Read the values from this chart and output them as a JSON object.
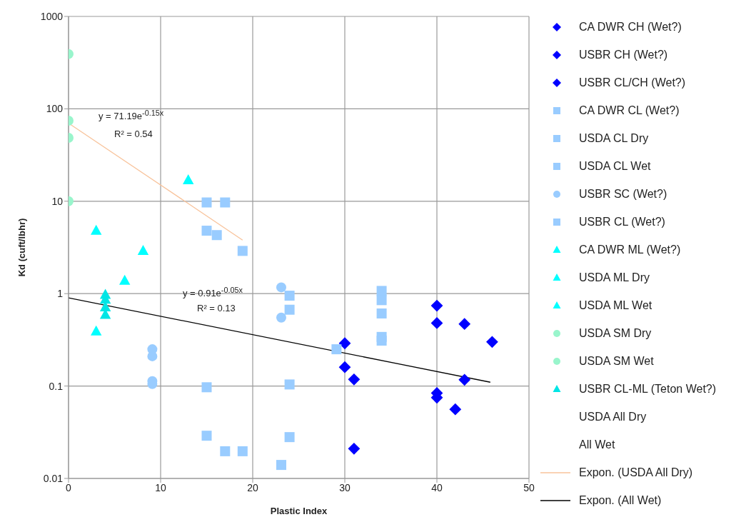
{
  "chart_data": {
    "type": "scatter",
    "xlabel": "Plastic Index",
    "ylabel": "Kd (cuft/lbhr)",
    "xlim": [
      0,
      50
    ],
    "xticks": [
      0,
      10,
      20,
      30,
      40,
      50
    ],
    "ylim": [
      0.01,
      1000
    ],
    "yticks": [
      0.01,
      0.1,
      1,
      10,
      100,
      1000
    ],
    "log": "y",
    "grid": true,
    "legend": "right",
    "series": [
      {
        "name": "CA DWR CH (Wet?)",
        "color": "#0000ff",
        "marker": "diamond",
        "x": [
          31,
          31,
          43,
          43,
          46,
          42
        ],
        "values": [
          0.118,
          0.021,
          0.47,
          0.117,
          0.3,
          0.056
        ]
      },
      {
        "name": "USBR CH (Wet?)",
        "color": "#0000ff",
        "marker": "diamond",
        "x": [
          30,
          30
        ],
        "values": [
          0.29,
          0.16
        ]
      },
      {
        "name": "USBR CL/CH (Wet?)",
        "color": "#0000ff",
        "marker": "diamond",
        "x": [
          40,
          40,
          40,
          40
        ],
        "values": [
          0.74,
          0.48,
          0.084,
          0.075
        ]
      },
      {
        "name": "CA DWR CL (Wet?)",
        "color": "#99ccff",
        "marker": "square",
        "x": [
          29.1,
          23.1,
          16.1
        ],
        "values": [
          0.25,
          0.014,
          4.3
        ]
      },
      {
        "name": "USDA CL Dry",
        "color": "#99ccff",
        "marker": "square",
        "x": [
          15,
          17,
          15,
          18.9
        ],
        "values": [
          9.7,
          9.7,
          4.8,
          2.9
        ]
      },
      {
        "name": "USDA CL Wet",
        "color": "#99ccff",
        "marker": "square",
        "x": [
          15,
          15,
          17,
          18.9
        ],
        "values": [
          0.097,
          0.029,
          0.0197,
          0.0197
        ]
      },
      {
        "name": "USBR SC (Wet?)",
        "color": "#99ccff",
        "marker": "circle",
        "x": [
          23.1,
          23.1,
          9.1,
          9.1,
          9.1,
          9.1
        ],
        "values": [
          1.17,
          0.55,
          0.25,
          0.21,
          0.113,
          0.105
        ]
      },
      {
        "name": "USBR CL (Wet?)",
        "color": "#99ccff",
        "marker": "square",
        "x": [
          34,
          34,
          34,
          34,
          34,
          24,
          24,
          24,
          24
        ],
        "values": [
          1.07,
          0.85,
          0.61,
          0.34,
          0.31,
          0.95,
          0.67,
          0.104,
          0.028
        ]
      },
      {
        "name": "CA DWR ML (Wet?)",
        "color": "#00ffff",
        "marker": "triangle",
        "x": [
          13,
          8.1,
          6.1
        ],
        "values": [
          16.9,
          2.9,
          1.38
        ]
      },
      {
        "name": "USDA ML Dry",
        "color": "#00ffff",
        "marker": "triangle",
        "x": [
          3
        ],
        "values": [
          4.8
        ]
      },
      {
        "name": "USDA ML Wet",
        "color": "#00ffff",
        "marker": "triangle",
        "x": [
          3
        ],
        "values": [
          0.39
        ]
      },
      {
        "name": "USDA SM Dry",
        "color": "#99f5cc",
        "marker": "circle",
        "x": [
          0,
          0
        ],
        "values": [
          392,
          74.5
        ]
      },
      {
        "name": "USDA SM Wet",
        "color": "#99f5cc",
        "marker": "circle",
        "x": [
          0,
          0
        ],
        "values": [
          48.6,
          10
        ]
      },
      {
        "name": "USBR CL-ML (Teton Wet?)",
        "color": "#00e5e5",
        "marker": "triangle",
        "x": [
          4,
          4,
          4,
          4
        ],
        "values": [
          0.97,
          0.86,
          0.71,
          0.59
        ]
      },
      {
        "name": "USDA All Dry",
        "marker": "none"
      },
      {
        "name": "All Wet",
        "marker": "none"
      },
      {
        "name": "Expon. (USDA All Dry)",
        "type": "line",
        "color": "#f8c39b",
        "marker": "none",
        "x": [
          0,
          18.9
        ],
        "values": [
          70,
          3.8
        ]
      },
      {
        "name": "Expon. (All Wet)",
        "type": "line",
        "color": "#000000",
        "marker": "none",
        "x": [
          0,
          45.8
        ],
        "values": [
          0.9,
          0.11
        ]
      }
    ],
    "annotations": [
      "y = 71.19e$^{-0.15x}$",
      "R² = 0.54",
      "y = 0.91e$^{-0.05x}$",
      "R² = 0.13"
    ]
  }
}
